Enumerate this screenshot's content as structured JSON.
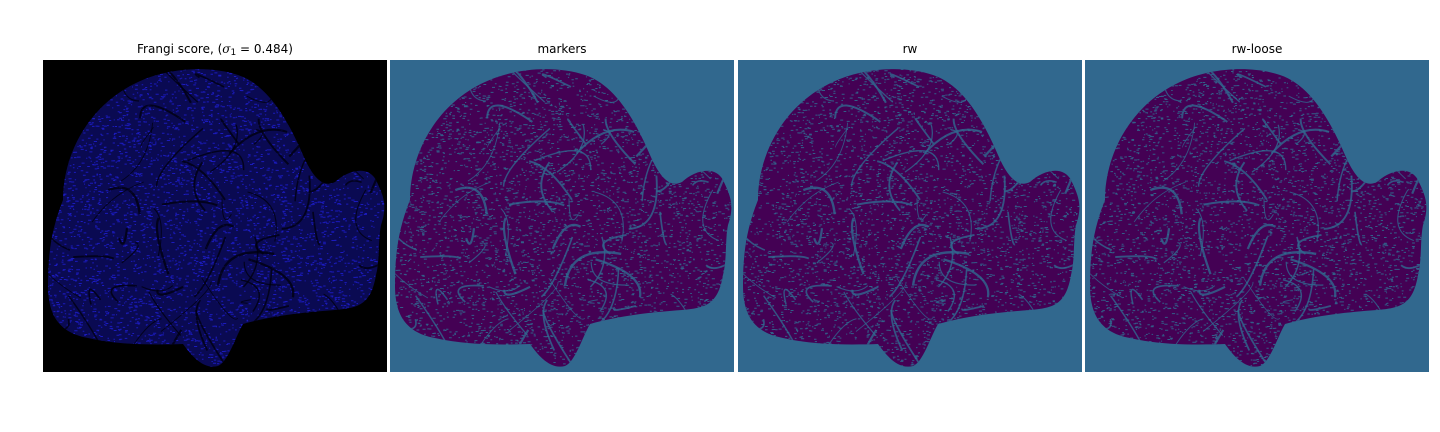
{
  "panels": [
    {
      "key": "frangi",
      "title": "Frangi score, ",
      "math": {
        "open": "(",
        "symbol": "σ",
        "subscript": "1",
        "equals": " = 0.484",
        "close": ")"
      },
      "colors": {
        "background": "#000000",
        "region": "#0a0a52",
        "texture": "#1f1fd0",
        "vessel": "#000010"
      }
    },
    {
      "key": "markers",
      "title": "markers",
      "colors": {
        "background": "#31688e",
        "region": "#440154",
        "texture": "#31688e",
        "vessel": "#31688e"
      }
    },
    {
      "key": "rw",
      "title": "rw",
      "colors": {
        "background": "#31688e",
        "region": "#440154",
        "texture": "#31688e",
        "vessel": "#31688e"
      }
    },
    {
      "key": "rw-loose",
      "title": "rw-loose",
      "colors": {
        "background": "#31688e",
        "region": "#440154",
        "texture": "#31688e",
        "vessel": "#31688e"
      }
    }
  ]
}
